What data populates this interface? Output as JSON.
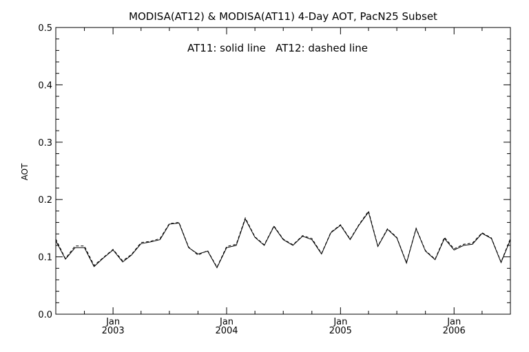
{
  "chart_data": {
    "type": "line",
    "title": "MODISA(AT12) & MODISA(AT11) 4-Day AOT, PacN25 Subset",
    "annotation": "AT11: solid line   AT12: dashed line",
    "xlabel": "",
    "ylabel": "AOT",
    "xlim": [
      "2002-07-01",
      "2006-07-01"
    ],
    "ylim": [
      0.0,
      0.5
    ],
    "yticks": [
      0.0,
      0.1,
      0.2,
      0.3,
      0.4,
      0.5
    ],
    "ytick_labels": [
      "0.0",
      "0.1",
      "0.2",
      "0.3",
      "0.4",
      "0.5"
    ],
    "xticks": [
      {
        "date": "2003-01-01",
        "month": "Jan",
        "year": "2003"
      },
      {
        "date": "2004-01-01",
        "month": "Jan",
        "year": "2004"
      },
      {
        "date": "2005-01-01",
        "month": "Jan",
        "year": "2005"
      },
      {
        "date": "2006-01-01",
        "month": "Jan",
        "year": "2006"
      }
    ],
    "grid": false,
    "x": [
      "2002-07",
      "2002-08",
      "2002-09",
      "2002-10",
      "2002-11",
      "2002-12",
      "2003-01",
      "2003-02",
      "2003-03",
      "2003-04",
      "2003-05",
      "2003-06",
      "2003-07",
      "2003-08",
      "2003-09",
      "2003-10",
      "2003-11",
      "2003-12",
      "2004-01",
      "2004-02",
      "2004-03",
      "2004-04",
      "2004-05",
      "2004-06",
      "2004-07",
      "2004-08",
      "2004-09",
      "2004-10",
      "2004-11",
      "2004-12",
      "2005-01",
      "2005-02",
      "2005-03",
      "2005-04",
      "2005-05",
      "2005-06",
      "2005-07",
      "2005-08",
      "2005-09",
      "2005-10",
      "2005-11",
      "2005-12",
      "2006-01",
      "2006-02",
      "2006-03",
      "2006-04",
      "2006-05",
      "2006-06",
      "2006-07"
    ],
    "series": [
      {
        "name": "AT11",
        "style": "solid",
        "values": [
          0.128,
          0.096,
          0.116,
          0.116,
          0.083,
          0.098,
          0.112,
          0.091,
          0.103,
          0.123,
          0.126,
          0.13,
          0.157,
          0.159,
          0.116,
          0.105,
          0.11,
          0.081,
          0.116,
          0.12,
          0.166,
          0.134,
          0.12,
          0.153,
          0.13,
          0.12,
          0.136,
          0.13,
          0.105,
          0.142,
          0.155,
          0.13,
          0.155,
          0.178,
          0.118,
          0.148,
          0.133,
          0.089,
          0.149,
          0.11,
          0.095,
          0.132,
          0.112,
          0.12,
          0.122,
          0.141,
          0.132,
          0.09,
          0.13
        ]
      },
      {
        "name": "AT12",
        "style": "dashed",
        "values": [
          0.131,
          0.097,
          0.119,
          0.119,
          0.085,
          0.099,
          0.113,
          0.093,
          0.104,
          0.125,
          0.127,
          0.132,
          0.158,
          0.16,
          0.117,
          0.103,
          0.111,
          0.082,
          0.118,
          0.122,
          0.168,
          0.135,
          0.121,
          0.154,
          0.131,
          0.121,
          0.137,
          0.132,
          0.106,
          0.143,
          0.156,
          0.131,
          0.156,
          0.18,
          0.119,
          0.149,
          0.134,
          0.09,
          0.15,
          0.111,
          0.096,
          0.134,
          0.114,
          0.122,
          0.124,
          0.142,
          0.133,
          0.091,
          0.132
        ]
      }
    ]
  }
}
